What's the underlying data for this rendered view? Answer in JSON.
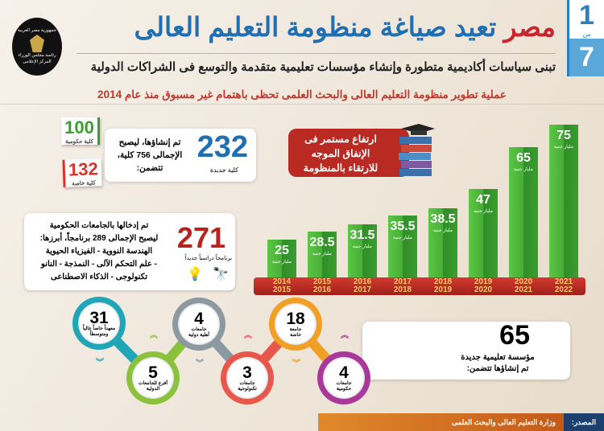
{
  "pager": {
    "current": "1",
    "of": "من",
    "total": "7"
  },
  "header": {
    "title_red": "مصر",
    "title_blue": "تعيد صياغة منظومة التعليم العالى",
    "subtitle": "تبنى سياسات أكاديمية متطورة وإنشاء مؤسسات تعليمية متقدمة والتوسع فى الشراكات الدولية",
    "logo_text": [
      "جمهورية مصر العربية",
      "رئاسة مجلس الوزراء",
      "المركز الإعلامى"
    ]
  },
  "strip": "عملية تطوير منظومة التعليم العالى والبحث العلمى تحظى باهتمام غير مسبوق منذ عام 2014",
  "colleges": {
    "number": "232",
    "label": "كلية جديدة",
    "text": [
      "تم إنشاؤها، ليصبح",
      "الإجمالى 756 كلية،",
      "تتضمن:"
    ],
    "gov": {
      "number": "100",
      "label": "كلية حكومية"
    },
    "priv": {
      "number": "132",
      "label": "كلية خاصة"
    }
  },
  "programs": {
    "number": "271",
    "label": "برنامجاً دراسياً جديداً",
    "text": [
      "تم إدخالها بالجامعات الحكومية",
      "ليصبح الإجمالى 289 برنامجاً، أبرزها:",
      "الهندسة النووية - الفيزياء الحيوية",
      "- علم التحكم الآلى - النمذجة - النانو",
      "تكنولوجى - الذكاء الاصطناعى"
    ]
  },
  "banner": [
    "ارتفاع مستمر فى",
    "الإنفاق الموجه",
    "للارتقاء بالمنظومة"
  ],
  "chart_data": {
    "type": "bar",
    "categories": [
      "2014\n2015",
      "2015\n2016",
      "2016\n2017",
      "2017\n2018",
      "2018\n2019",
      "2019\n2020",
      "2020\n2021",
      "2021\n2022"
    ],
    "values": [
      25,
      28.5,
      31.5,
      35.5,
      38.5,
      47,
      65,
      75
    ],
    "labels": [
      "25",
      "28.5",
      "31.5",
      "35.5",
      "38.5",
      "47",
      "65",
      "75"
    ],
    "unit": "مليار جنيه",
    "colors": {
      "bar": "#46ad35",
      "axis": "#b92a22",
      "year": "#f3c86a"
    }
  },
  "institutions": {
    "number": "65",
    "text": [
      "مؤسسة تعليمية  جديدة",
      "تم إنشاؤها تتضمن:"
    ],
    "items": [
      {
        "number": "4",
        "label": [
          "جامعات",
          "حكومية"
        ],
        "color": "#a9389a"
      },
      {
        "number": "18",
        "label": [
          "جامعة",
          "خاصة"
        ],
        "color": "#f0a024"
      },
      {
        "number": "3",
        "label": [
          "جامعات",
          "تكنولوجية"
        ],
        "color": "#e8574c"
      },
      {
        "number": "4",
        "label": [
          "جامعات",
          "أهلية دولية"
        ],
        "color": "#8a9aa0"
      },
      {
        "number": "5",
        "label": [
          "أفرع للجامعات",
          "الدولية"
        ],
        "color": "#8bc23c"
      },
      {
        "number": "31",
        "label": [
          "معهداً خاصاً عالياً",
          "ومتوسطاً"
        ],
        "color": "#1fa6b8"
      }
    ]
  },
  "footer": {
    "source_label": "المصدر:",
    "source": "وزارة التعليم العالى والبحث العلمى"
  }
}
